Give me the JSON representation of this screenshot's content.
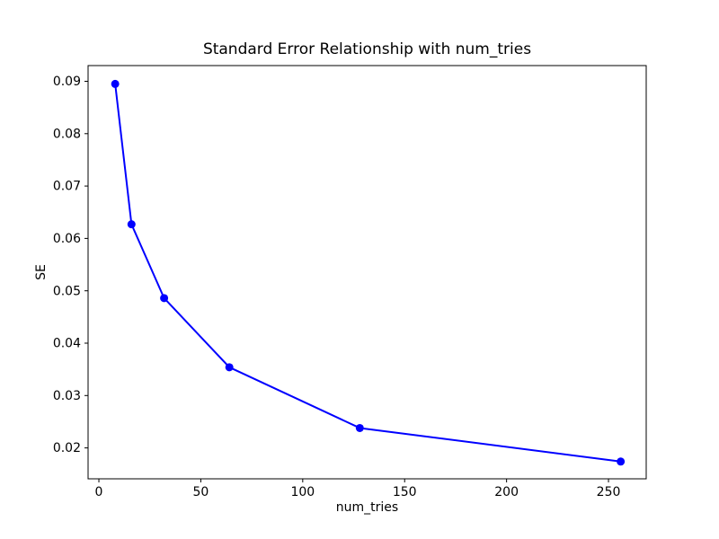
{
  "figure": {
    "background_color": "#ffffff",
    "axes_color": "#000000"
  },
  "chart_data": {
    "type": "line",
    "title": "Standard Error Relationship with num_tries",
    "xlabel": "num_tries",
    "ylabel": "SE",
    "x": [
      8,
      16,
      32,
      64,
      128,
      256
    ],
    "y": [
      0.0895,
      0.0627,
      0.0486,
      0.0354,
      0.0238,
      0.0174
    ],
    "xticks": [
      0,
      50,
      100,
      150,
      200,
      250
    ],
    "yticks": [
      0.02,
      0.03,
      0.04,
      0.05,
      0.06,
      0.07,
      0.08,
      0.09
    ],
    "xlim": [
      -5.3,
      268.5
    ],
    "ylim": [
      0.0141,
      0.093
    ],
    "line_color": "#0000ff",
    "marker": "o",
    "marker_size": 9,
    "grid": false,
    "legend": null
  }
}
